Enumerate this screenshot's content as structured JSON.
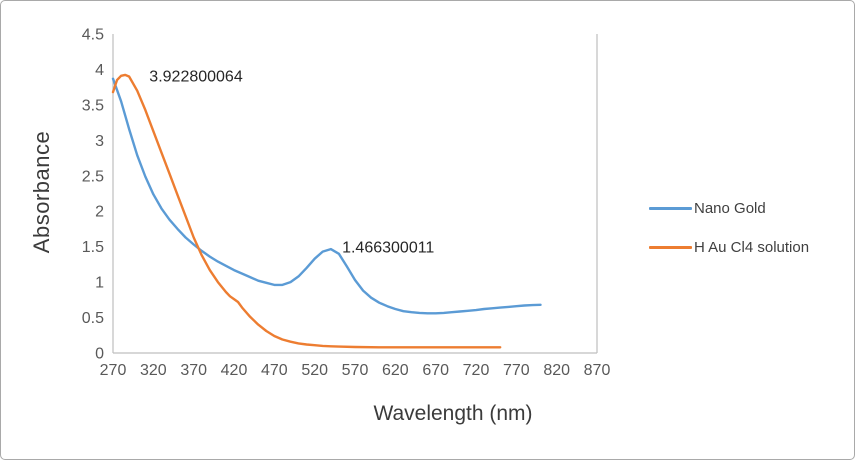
{
  "chart_data": {
    "type": "line",
    "title": "",
    "xlabel": "Wavelength (nm)",
    "ylabel": "Absorbance",
    "xlim": [
      270,
      870
    ],
    "ylim": [
      0,
      4.5
    ],
    "x_ticks": [
      270,
      320,
      370,
      420,
      470,
      520,
      570,
      620,
      670,
      720,
      770,
      820,
      870
    ],
    "y_ticks": [
      0,
      0.5,
      1,
      1.5,
      2,
      2.5,
      3,
      3.5,
      4,
      4.5
    ],
    "grid": false,
    "legend_position": "right",
    "colors": {
      "accent_blue": "#5B9BD5",
      "accent_orange": "#ED7D31",
      "axis_line": "#bfbfbf",
      "tick_text": "#595959"
    },
    "annotations": [
      {
        "text": "3.922800064",
        "x": 315,
        "y": 3.9
      },
      {
        "text": "1.466300011",
        "x": 554,
        "y": 1.49
      }
    ],
    "series": [
      {
        "name": "Nano Gold",
        "color": "#5B9BD5",
        "points": [
          [
            270,
            3.87
          ],
          [
            280,
            3.55
          ],
          [
            290,
            3.16
          ],
          [
            300,
            2.79
          ],
          [
            310,
            2.49
          ],
          [
            320,
            2.24
          ],
          [
            330,
            2.04
          ],
          [
            340,
            1.88
          ],
          [
            350,
            1.75
          ],
          [
            360,
            1.63
          ],
          [
            370,
            1.53
          ],
          [
            380,
            1.44
          ],
          [
            390,
            1.36
          ],
          [
            400,
            1.29
          ],
          [
            410,
            1.23
          ],
          [
            420,
            1.17
          ],
          [
            430,
            1.12
          ],
          [
            440,
            1.07
          ],
          [
            450,
            1.02
          ],
          [
            460,
            0.99
          ],
          [
            470,
            0.96
          ],
          [
            480,
            0.96
          ],
          [
            490,
            1.0
          ],
          [
            500,
            1.08
          ],
          [
            510,
            1.2
          ],
          [
            520,
            1.33
          ],
          [
            530,
            1.43
          ],
          [
            540,
            1.466300011
          ],
          [
            550,
            1.4
          ],
          [
            560,
            1.22
          ],
          [
            570,
            1.03
          ],
          [
            580,
            0.88
          ],
          [
            590,
            0.78
          ],
          [
            600,
            0.71
          ],
          [
            610,
            0.66
          ],
          [
            620,
            0.62
          ],
          [
            630,
            0.59
          ],
          [
            640,
            0.575
          ],
          [
            650,
            0.565
          ],
          [
            660,
            0.56
          ],
          [
            670,
            0.56
          ],
          [
            680,
            0.565
          ],
          [
            690,
            0.575
          ],
          [
            700,
            0.585
          ],
          [
            710,
            0.595
          ],
          [
            720,
            0.605
          ],
          [
            730,
            0.62
          ],
          [
            740,
            0.63
          ],
          [
            750,
            0.64
          ],
          [
            760,
            0.65
          ],
          [
            770,
            0.66
          ],
          [
            780,
            0.67
          ],
          [
            790,
            0.675
          ],
          [
            800,
            0.68
          ]
        ]
      },
      {
        "name": "H Au Cl4 solution",
        "color": "#ED7D31",
        "points": [
          [
            270,
            3.68
          ],
          [
            275,
            3.85
          ],
          [
            280,
            3.91
          ],
          [
            285,
            3.922800064
          ],
          [
            290,
            3.9
          ],
          [
            300,
            3.7
          ],
          [
            310,
            3.43
          ],
          [
            320,
            3.13
          ],
          [
            330,
            2.83
          ],
          [
            340,
            2.53
          ],
          [
            350,
            2.23
          ],
          [
            360,
            1.93
          ],
          [
            370,
            1.63
          ],
          [
            380,
            1.38
          ],
          [
            390,
            1.17
          ],
          [
            400,
            1.0
          ],
          [
            410,
            0.86
          ],
          [
            415,
            0.8
          ],
          [
            420,
            0.76
          ],
          [
            425,
            0.72
          ],
          [
            430,
            0.64
          ],
          [
            440,
            0.51
          ],
          [
            450,
            0.4
          ],
          [
            460,
            0.31
          ],
          [
            470,
            0.24
          ],
          [
            480,
            0.19
          ],
          [
            490,
            0.16
          ],
          [
            500,
            0.135
          ],
          [
            510,
            0.12
          ],
          [
            520,
            0.11
          ],
          [
            530,
            0.1
          ],
          [
            540,
            0.095
          ],
          [
            550,
            0.09
          ],
          [
            570,
            0.085
          ],
          [
            600,
            0.08
          ],
          [
            630,
            0.08
          ],
          [
            660,
            0.08
          ],
          [
            690,
            0.08
          ],
          [
            720,
            0.08
          ],
          [
            750,
            0.08
          ]
        ]
      }
    ]
  }
}
